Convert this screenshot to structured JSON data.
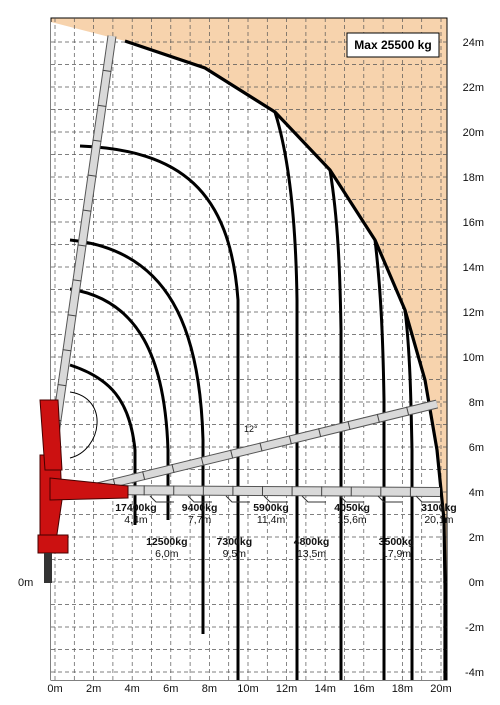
{
  "chart_data": {
    "type": "line",
    "title": "Max 25500 kg",
    "x_ticks": [
      "0m",
      "2m",
      "4m",
      "6m",
      "8m",
      "10m",
      "12m",
      "14m",
      "16m",
      "18m",
      "20m"
    ],
    "y_ticks": [
      "24m",
      "22m",
      "20m",
      "18m",
      "16m",
      "14m",
      "12m",
      "10m",
      "8m",
      "6m",
      "4m",
      "2m",
      "0m",
      "-2m",
      "-4m"
    ],
    "y_left_label": "0m",
    "xlim": [
      0,
      20.5
    ],
    "ylim": [
      -4.6,
      24.4
    ],
    "grid": true,
    "angle_label": "12°",
    "load_points": [
      {
        "load": "17400kg",
        "reach": "4,4m"
      },
      {
        "load": "12500kg",
        "reach": "6,0m"
      },
      {
        "load": "9400kg",
        "reach": "7,7m"
      },
      {
        "load": "7300kg",
        "reach": "9,5m"
      },
      {
        "load": "5900kg",
        "reach": "11,4m"
      },
      {
        "load": "4800kg",
        "reach": "13,5m"
      },
      {
        "load": "4050kg",
        "reach": "15,6m"
      },
      {
        "load": "3500kg",
        "reach": "17,9m"
      },
      {
        "load": "3100kg",
        "reach": "20,1m"
      }
    ],
    "colors": {
      "background": "#f7d3ad",
      "grid": "#555555",
      "curve": "#000000",
      "crane": "#cc1111",
      "boom": "#d9d9d9"
    }
  }
}
